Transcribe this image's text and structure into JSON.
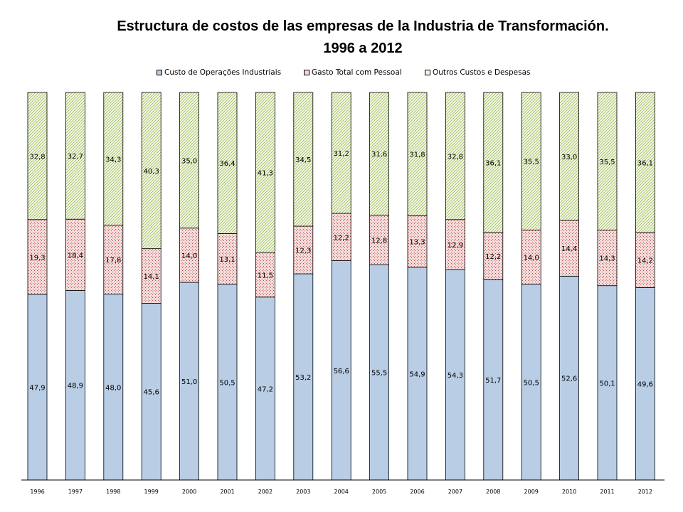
{
  "chart_data": {
    "type": "bar",
    "stacked": true,
    "title_line1": "Estructura de costos de las empresas de la Industria de Transformación.",
    "title_line2": "1996 a 2012",
    "categories": [
      "1996",
      "1997",
      "1998",
      "1999",
      "2000",
      "2001",
      "2002",
      "2003",
      "2004",
      "2005",
      "2006",
      "2007",
      "2008",
      "2009",
      "2010",
      "2011",
      "2012"
    ],
    "series": [
      {
        "name": "Custo de Operações Industriais",
        "color": "#b9cde5",
        "pattern": "solid",
        "values": [
          47.9,
          48.9,
          48.0,
          45.6,
          51.0,
          50.5,
          47.2,
          53.2,
          56.6,
          55.5,
          54.9,
          54.3,
          51.7,
          50.5,
          52.6,
          50.1,
          49.6
        ],
        "labels": [
          "47,9",
          "48,9",
          "48,0",
          "45,6",
          "51,0",
          "50,5",
          "47,2",
          "53,2",
          "56,6",
          "55,5",
          "54,9",
          "54,3",
          "51,7",
          "50,5",
          "52,6",
          "50,1",
          "49,6"
        ]
      },
      {
        "name": "Gasto Total com Pessoal",
        "color": "#c0504d",
        "pattern": "dots",
        "values": [
          19.3,
          18.4,
          17.8,
          14.1,
          14.0,
          13.1,
          11.5,
          12.3,
          12.2,
          12.8,
          13.3,
          12.9,
          12.2,
          14.0,
          14.4,
          14.3,
          14.2
        ],
        "labels": [
          "19,3",
          "18,4",
          "17,8",
          "14,1",
          "14,0",
          "13,1",
          "11,5",
          "12,3",
          "12,2",
          "12,8",
          "13,3",
          "12,9",
          "12,2",
          "14,0",
          "14,4",
          "14,3",
          "14,2"
        ]
      },
      {
        "name": "Outros Custos e Despesas",
        "color": "#9bbb59",
        "pattern": "diagonal",
        "values": [
          32.8,
          32.7,
          34.3,
          40.3,
          35.0,
          36.4,
          41.3,
          34.5,
          31.2,
          31.6,
          31.8,
          32.8,
          36.1,
          35.5,
          33.0,
          35.5,
          36.1
        ],
        "labels": [
          "32,8",
          "32,7",
          "34,3",
          "40,3",
          "35,0",
          "36,4",
          "41,3",
          "34,5",
          "31,2",
          "31,6",
          "31,8",
          "32,8",
          "36,1",
          "35,5",
          "33,0",
          "35,5",
          "36,1"
        ]
      }
    ],
    "ylim": [
      0,
      100
    ],
    "grid": false,
    "legend_position": "top"
  }
}
